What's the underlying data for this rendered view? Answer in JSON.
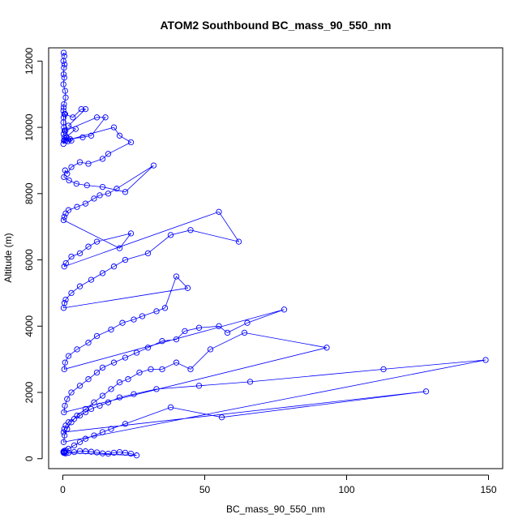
{
  "chart_data": {
    "type": "scatter",
    "title": "ATOM2 Southbound BC_mass_90_550_nm",
    "xlabel": "BC_mass_90_550_nm",
    "ylabel": "Altitude (m)",
    "xlim": [
      -5,
      155
    ],
    "ylim": [
      -300,
      12400
    ],
    "xticks": [
      0,
      50,
      100,
      150
    ],
    "yticks": [
      0,
      2000,
      4000,
      6000,
      8000,
      10000,
      12000
    ],
    "grid": false,
    "legend": "none",
    "color": "#0000ff",
    "marker": "open-circle",
    "connected": true,
    "series": [
      {
        "x": [
          0.3,
          0.5,
          0.2,
          0.6,
          0.4,
          0.3,
          0.5,
          0.2,
          0.8,
          1.0,
          0.4,
          0.3,
          0.2,
          0.5,
          0.3,
          0.2,
          0.4,
          0.6,
          0.3,
          0.5,
          0.4,
          0.2,
          1.2,
          0.8,
          3.5,
          6.5,
          8,
          2.0,
          4.5,
          1.2,
          0.6,
          1.8,
          3.0,
          0.9,
          12,
          15,
          10,
          7,
          2.5,
          1.0,
          18,
          20,
          24,
          16,
          14,
          9,
          6,
          3,
          1.5,
          0.8,
          0.4,
          2.2,
          4.8,
          8.5,
          14,
          22,
          32,
          19,
          16,
          13,
          11,
          8,
          5,
          2,
          1,
          0.5,
          0.3,
          20,
          24,
          12,
          9,
          6,
          3,
          1.1,
          0.5,
          55,
          62,
          45,
          38,
          30,
          22,
          18,
          14,
          10,
          6,
          3,
          1,
          0.6,
          0.3,
          44,
          40,
          36,
          33,
          28,
          25,
          21,
          17,
          12,
          9,
          5,
          2,
          0.8,
          0.5,
          78,
          65,
          58,
          55,
          48,
          43,
          40,
          35,
          30,
          26,
          22,
          18,
          14,
          12,
          9,
          6,
          3,
          1.5,
          0.7,
          0.4,
          93,
          64,
          52,
          45,
          40,
          35,
          31,
          27,
          23,
          20,
          17,
          14,
          11,
          8,
          5,
          3,
          1.5,
          0.6,
          0.3,
          149,
          113,
          66,
          48,
          33,
          25,
          20,
          16,
          13,
          10,
          8,
          6,
          4,
          2,
          1,
          0.5,
          0.3,
          128,
          56,
          38,
          22,
          17,
          14,
          11,
          8,
          6,
          4,
          2,
          1,
          0.5,
          0.3,
          26,
          24,
          22,
          20,
          18,
          16,
          14,
          12,
          10,
          8,
          6,
          4,
          2,
          1,
          0.5,
          0.3,
          0.2,
          0.4
        ],
        "y": [
          12250,
          12150,
          12000,
          11900,
          11800,
          11600,
          11500,
          11300,
          11100,
          10900,
          10700,
          10600,
          10500,
          10400,
          10300,
          10150,
          10000,
          9900,
          9800,
          9700,
          9600,
          9500,
          9700,
          10400,
          10300,
          10550,
          10550,
          10050,
          9950,
          9700,
          9620,
          9580,
          9600,
          9900,
          10300,
          10300,
          9750,
          9700,
          9650,
          9600,
          10000,
          9750,
          9550,
          9200,
          9050,
          8900,
          8950,
          8800,
          8600,
          8700,
          8500,
          8400,
          8300,
          8250,
          8200,
          8050,
          8850,
          8150,
          8000,
          7950,
          7850,
          7700,
          7600,
          7500,
          7400,
          7300,
          7200,
          6350,
          6800,
          6550,
          6400,
          6200,
          6100,
          5900,
          5800,
          7450,
          6550,
          6900,
          6750,
          6200,
          6000,
          5800,
          5600,
          5400,
          5200,
          5000,
          4800,
          4700,
          4550,
          5150,
          5500,
          4550,
          4450,
          4300,
          4200,
          4100,
          3900,
          3700,
          3500,
          3300,
          3100,
          2900,
          2700,
          4500,
          4100,
          3800,
          4000,
          3950,
          3850,
          3600,
          3550,
          3350,
          3200,
          3050,
          2900,
          2750,
          2600,
          2400,
          2200,
          2000,
          1800,
          1600,
          1400,
          3350,
          3800,
          3300,
          2700,
          2900,
          2700,
          2700,
          2600,
          2400,
          2300,
          2100,
          1900,
          1700,
          1500,
          1300,
          1100,
          900,
          700,
          500,
          2980,
          2700,
          2320,
          2200,
          2100,
          1950,
          1850,
          1700,
          1600,
          1500,
          1400,
          1300,
          1200,
          1100,
          1000,
          900,
          800,
          2030,
          1250,
          1550,
          1050,
          900,
          800,
          700,
          600,
          500,
          400,
          300,
          250,
          200,
          180,
          100,
          150,
          180,
          200,
          180,
          150,
          160,
          190,
          210,
          220,
          230,
          200,
          180,
          160,
          170,
          190,
          210,
          230
        ]
      }
    ]
  }
}
